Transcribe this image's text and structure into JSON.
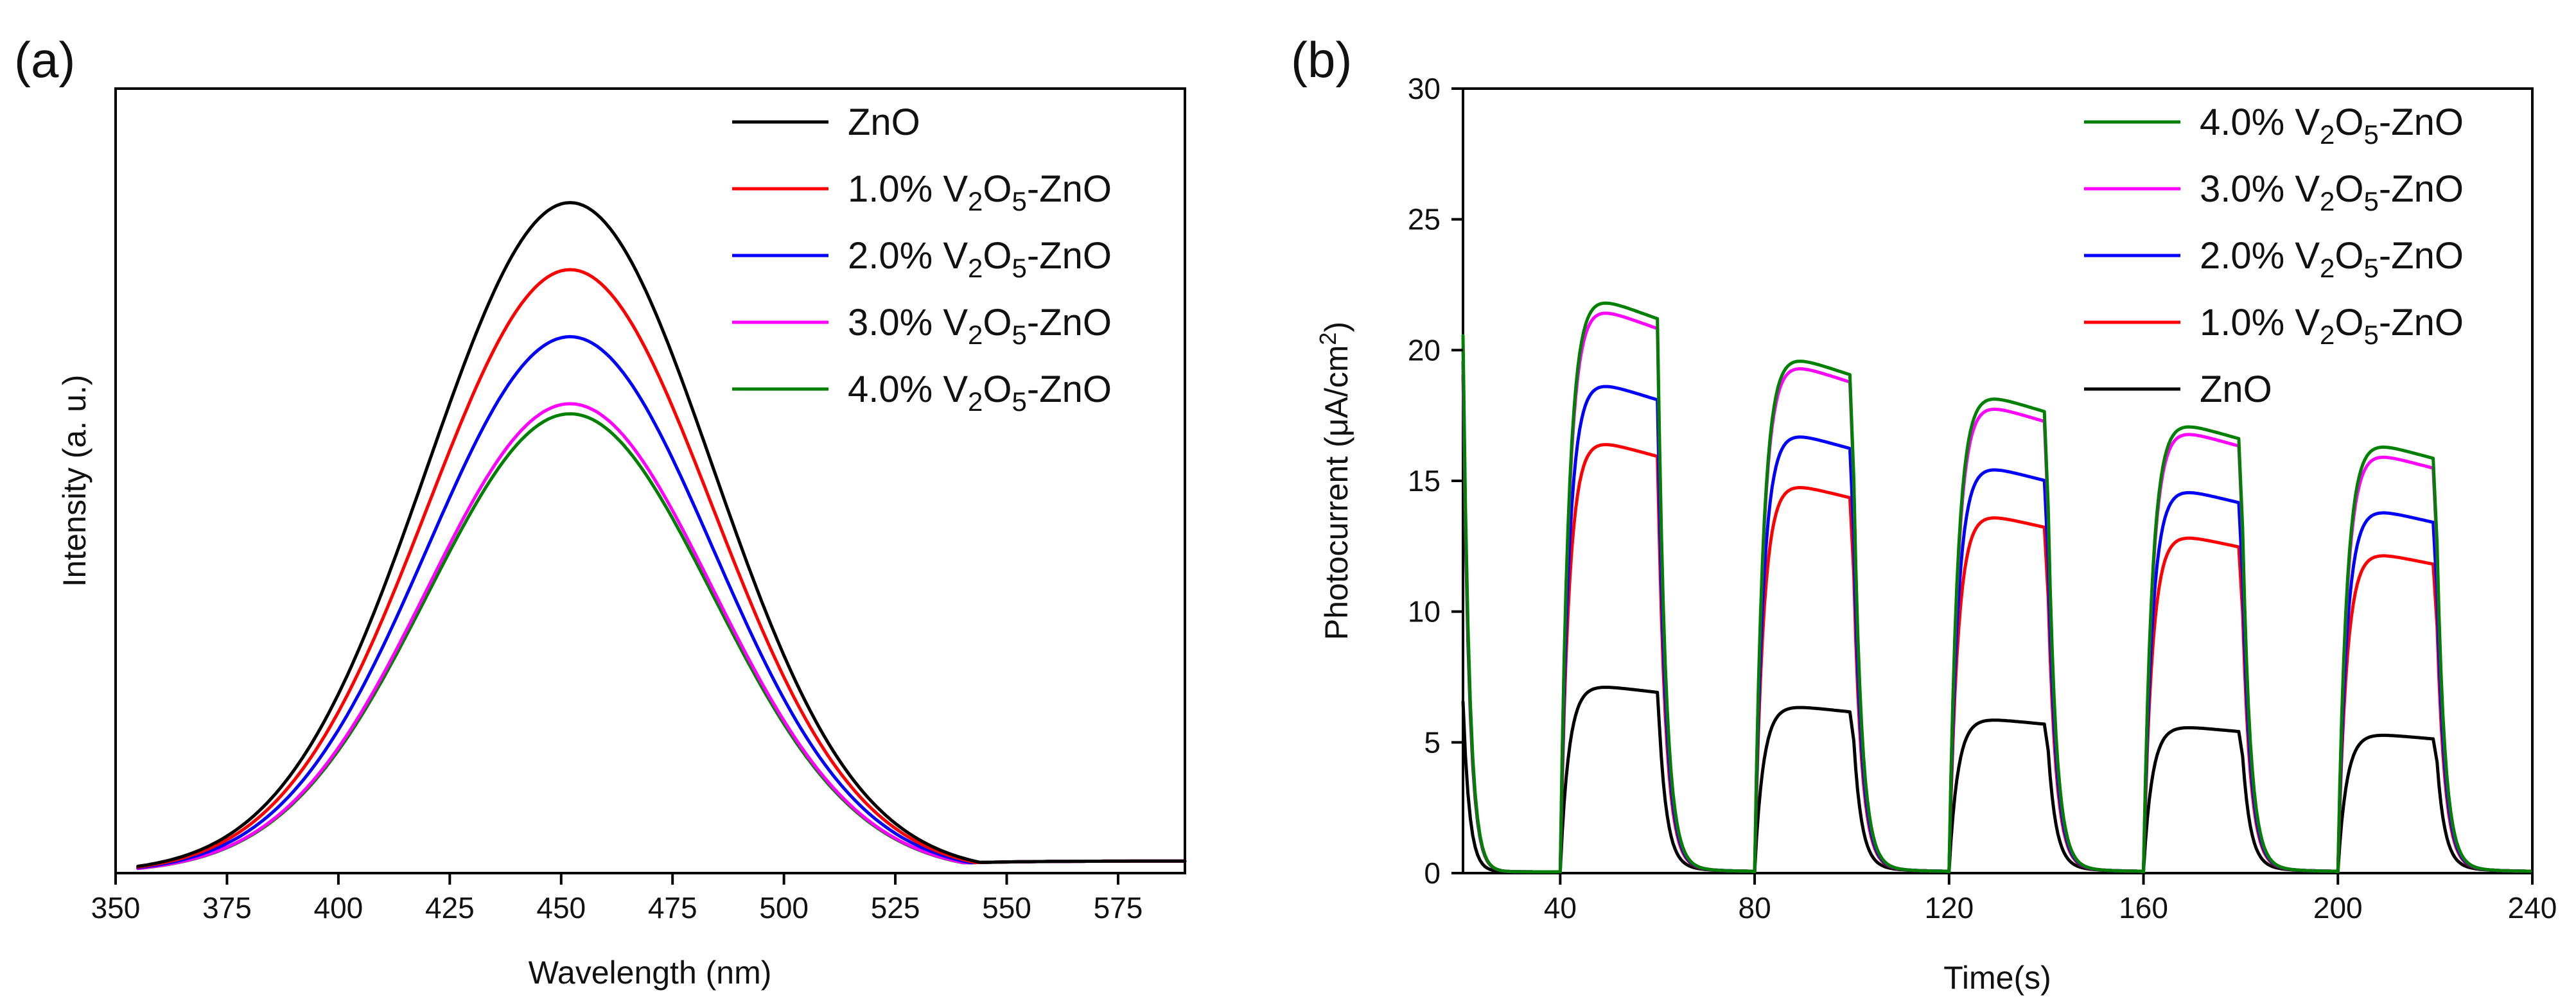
{
  "chart_data": [
    {
      "type": "line",
      "panel_label": "(a)",
      "title": "",
      "xlabel": "Wavelength (nm)",
      "ylabel": "Intensity (a. u.)",
      "xlim": [
        350,
        590
      ],
      "ylim": [
        0,
        1.17
      ],
      "xticks": [
        350,
        375,
        400,
        425,
        450,
        475,
        500,
        525,
        550,
        575
      ],
      "xtick_labels": [
        "350",
        "375",
        "400",
        "425",
        "450",
        "475",
        "500",
        "525",
        "550",
        "575"
      ],
      "grid": false,
      "legend_position": "top-right",
      "peak_nm": 452,
      "series": [
        {
          "name": "ZnO",
          "color": "#000000",
          "peak": 1.0,
          "sigma": 32,
          "baseline": 0.018
        },
        {
          "name": "1.0% V2O5-ZnO",
          "color": "#ff0000",
          "peak": 0.9,
          "sigma": 32,
          "baseline": 0.018
        },
        {
          "name": "2.0% V2O5-ZnO",
          "color": "#0000ff",
          "peak": 0.8,
          "sigma": 32,
          "baseline": 0.018
        },
        {
          "name": "3.0% V2O5-ZnO",
          "color": "#ff00ff",
          "peak": 0.7,
          "sigma": 32,
          "baseline": 0.018
        },
        {
          "name": "4.0% V2O5-ZnO",
          "color": "#008000",
          "peak": 0.685,
          "sigma": 32,
          "baseline": 0.018
        }
      ]
    },
    {
      "type": "line",
      "panel_label": "(b)",
      "title": "",
      "xlabel": "Time(s)",
      "ylabel": "Photocurrent (μA/cm²)",
      "xlim": [
        20,
        240
      ],
      "ylim": [
        0,
        30
      ],
      "xticks": [
        40,
        80,
        120,
        160,
        200,
        240
      ],
      "xtick_labels": [
        "40",
        "80",
        "120",
        "160",
        "200",
        "240"
      ],
      "yticks": [
        0,
        5,
        10,
        15,
        20,
        25,
        30
      ],
      "ytick_labels": [
        "0",
        "5",
        "10",
        "15",
        "20",
        "25",
        "30"
      ],
      "grid": false,
      "legend_position": "top-right",
      "light_on_periods": [
        [
          40,
          60
        ],
        [
          80,
          100
        ],
        [
          120,
          140
        ],
        [
          160,
          180
        ],
        [
          200,
          220
        ]
      ],
      "series": [
        {
          "name": "4.0% V2O5-ZnO",
          "color": "#008000",
          "initial_spike": 20.5,
          "plateaus": [
            22.5,
            20.2,
            18.7,
            17.6,
            16.8
          ]
        },
        {
          "name": "3.0% V2O5-ZnO",
          "color": "#ff00ff",
          "initial_spike": 20.0,
          "plateaus": [
            22.1,
            19.9,
            18.3,
            17.3,
            16.4
          ]
        },
        {
          "name": "2.0% V2O5-ZnO",
          "color": "#0000ff",
          "initial_spike": 19.5,
          "plateaus": [
            19.2,
            17.2,
            15.9,
            15.0,
            14.2
          ]
        },
        {
          "name": "1.0% V2O5-ZnO",
          "color": "#ff0000",
          "initial_spike": 19.0,
          "plateaus": [
            16.9,
            15.2,
            14.0,
            13.2,
            12.5
          ]
        },
        {
          "name": "ZnO",
          "color": "#000000",
          "initial_spike": 6.5,
          "plateaus": [
            7.3,
            6.5,
            6.0,
            5.7,
            5.4
          ]
        }
      ]
    }
  ],
  "legends": {
    "a": [
      {
        "prefix": "ZnO",
        "formula": false
      },
      {
        "prefix": "1.0% V",
        "formula": true
      },
      {
        "prefix": "2.0% V",
        "formula": true
      },
      {
        "prefix": "3.0% V",
        "formula": true
      },
      {
        "prefix": "4.0% V",
        "formula": true
      }
    ],
    "b": [
      {
        "prefix": "4.0% V",
        "formula": true
      },
      {
        "prefix": "3.0% V",
        "formula": true
      },
      {
        "prefix": "2.0% V",
        "formula": true
      },
      {
        "prefix": "1.0% V",
        "formula": true
      },
      {
        "prefix": "ZnO",
        "formula": false
      }
    ],
    "formula_parts": {
      "sub1": "2",
      "mid": "O",
      "sub2": "5",
      "suffix": "-ZnO"
    }
  },
  "ylabel_b_parts": {
    "main": "Photocurrent (μA/cm",
    "sup": "2",
    "close": ")"
  }
}
